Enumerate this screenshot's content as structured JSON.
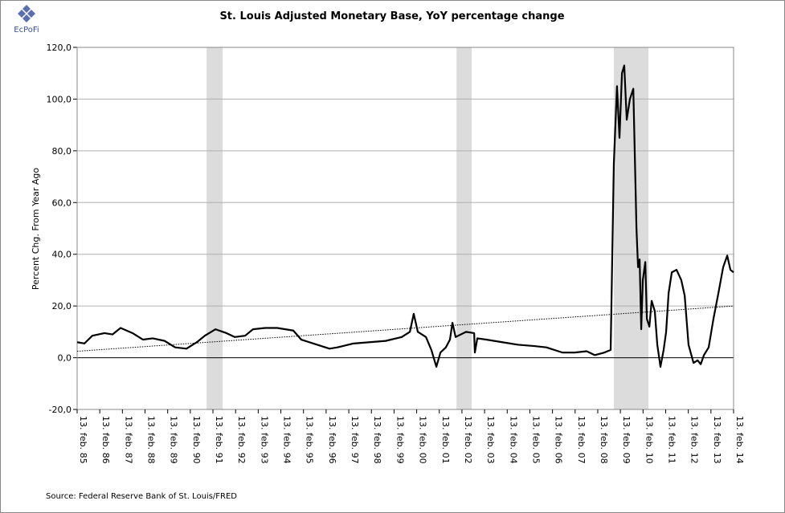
{
  "logo": "EcPoFi",
  "source": "Source: Federal Reserve Bank of St. Louis/FRED",
  "chart_data": {
    "type": "line",
    "title": "St. Louis Adjusted Monetary Base, YoY percentage change",
    "y_label": "Percent Chg. From Year Ago",
    "xlim": [
      1985.12,
      2014.12
    ],
    "ylim": [
      -20,
      120
    ],
    "yticks": [
      {
        "value": -20,
        "label": "-20,0"
      },
      {
        "value": 0,
        "label": "0,0"
      },
      {
        "value": 20,
        "label": "20,0"
      },
      {
        "value": 40,
        "label": "40,0"
      },
      {
        "value": 60,
        "label": "60,0"
      },
      {
        "value": 80,
        "label": "80,0"
      },
      {
        "value": 100,
        "label": "100,0"
      },
      {
        "value": 120,
        "label": "120,0"
      }
    ],
    "xticks": [
      {
        "value": 1985.12,
        "label": "13. feb. 85"
      },
      {
        "value": 1986.12,
        "label": "13. feb. 86"
      },
      {
        "value": 1987.12,
        "label": "13. feb. 87"
      },
      {
        "value": 1988.12,
        "label": "13. feb. 88"
      },
      {
        "value": 1989.12,
        "label": "13. feb. 89"
      },
      {
        "value": 1990.12,
        "label": "13. feb. 90"
      },
      {
        "value": 1991.12,
        "label": "13. feb. 91"
      },
      {
        "value": 1992.12,
        "label": "13. feb. 92"
      },
      {
        "value": 1993.12,
        "label": "13. feb. 93"
      },
      {
        "value": 1994.12,
        "label": "13. feb. 94"
      },
      {
        "value": 1995.12,
        "label": "13. feb. 95"
      },
      {
        "value": 1996.12,
        "label": "13. feb. 96"
      },
      {
        "value": 1997.12,
        "label": "13. feb. 97"
      },
      {
        "value": 1998.12,
        "label": "13. feb. 98"
      },
      {
        "value": 1999.12,
        "label": "13. feb. 99"
      },
      {
        "value": 2000.12,
        "label": "13. feb. 00"
      },
      {
        "value": 2001.12,
        "label": "13. feb. 01"
      },
      {
        "value": 2002.12,
        "label": "13. feb. 02"
      },
      {
        "value": 2003.12,
        "label": "13. feb. 03"
      },
      {
        "value": 2004.12,
        "label": "13. feb. 04"
      },
      {
        "value": 2005.12,
        "label": "13. feb. 05"
      },
      {
        "value": 2006.12,
        "label": "13. feb. 06"
      },
      {
        "value": 2007.12,
        "label": "13. feb. 07"
      },
      {
        "value": 2008.12,
        "label": "13. feb. 08"
      },
      {
        "value": 2009.12,
        "label": "13. feb. 09"
      },
      {
        "value": 2010.12,
        "label": "13. feb. 10"
      },
      {
        "value": 2011.12,
        "label": "13. feb. 11"
      },
      {
        "value": 2012.12,
        "label": "13. feb. 12"
      },
      {
        "value": 2013.12,
        "label": "13. feb. 13"
      },
      {
        "value": 2014.12,
        "label": "13. feb. 14"
      }
    ],
    "grid": true,
    "shaded_ranges": [
      [
        1990.84,
        1991.55
      ],
      [
        2001.88,
        2002.55
      ],
      [
        2008.83,
        2010.36
      ]
    ],
    "shade_color": "#dcdcdc",
    "series": [
      {
        "color": "#000000",
        "dash": false,
        "x": [
          1985.12,
          1985.44,
          1985.79,
          1986.33,
          1986.68,
          1987.04,
          1987.57,
          1988.03,
          1988.46,
          1988.99,
          1989.45,
          1989.95,
          1990.41,
          1990.76,
          1991.23,
          1991.72,
          1992.08,
          1992.54,
          1992.89,
          1993.43,
          1993.96,
          1994.67,
          1995.02,
          1995.73,
          1996.27,
          1996.62,
          1997.33,
          1998.04,
          1998.75,
          1999.46,
          1999.82,
          1999.99,
          2000.17,
          2000.53,
          2000.77,
          2000.99,
          2001.17,
          2001.41,
          2001.59,
          2001.7,
          2001.84,
          2002.3,
          2002.66,
          2002.69,
          2002.8,
          2003.19,
          2003.9,
          2004.61,
          2005.32,
          2005.85,
          2006.56,
          2007.1,
          2007.63,
          2007.99,
          2008.41,
          2008.69,
          2008.83,
          2008.97,
          2009.08,
          2009.19,
          2009.29,
          2009.4,
          2009.54,
          2009.69,
          2009.83,
          2009.9,
          2009.97,
          2010.04,
          2010.11,
          2010.22,
          2010.29,
          2010.4,
          2010.5,
          2010.64,
          2010.75,
          2010.89,
          2011.03,
          2011.14,
          2011.25,
          2011.39,
          2011.6,
          2011.81,
          2011.96,
          2012.13,
          2012.35,
          2012.53,
          2012.67,
          2012.81,
          2013.02,
          2013.23,
          2013.45,
          2013.66,
          2013.84,
          2013.98,
          2014.12
        ],
        "values": [
          6,
          5.5,
          8.5,
          9.5,
          9,
          11.5,
          9.5,
          7,
          7.5,
          6.5,
          4,
          3.5,
          6,
          8.5,
          11,
          9.5,
          8,
          8.5,
          11,
          11.5,
          11.5,
          10.5,
          7,
          5,
          3.5,
          4,
          5.5,
          6,
          6.5,
          8,
          10,
          17,
          10,
          8,
          3,
          -3.5,
          2,
          4,
          7,
          13.5,
          8,
          10,
          9.5,
          2,
          7.5,
          7,
          6,
          5,
          4.5,
          4,
          2,
          2,
          2.5,
          1,
          2,
          3,
          75,
          105,
          85,
          110,
          113,
          92,
          100,
          104,
          50,
          35,
          38,
          11,
          30,
          37,
          15,
          12,
          22,
          18,
          5,
          -3.5,
          3,
          10,
          25,
          33,
          34,
          30,
          24,
          5,
          -2,
          -1,
          -2.5,
          1,
          4,
          15,
          25,
          35,
          39.5,
          34,
          33
        ]
      },
      {
        "color": "#000000",
        "dash": true,
        "x": [
          1985.12,
          2014.12
        ],
        "values": [
          2.5,
          20
        ]
      }
    ]
  }
}
